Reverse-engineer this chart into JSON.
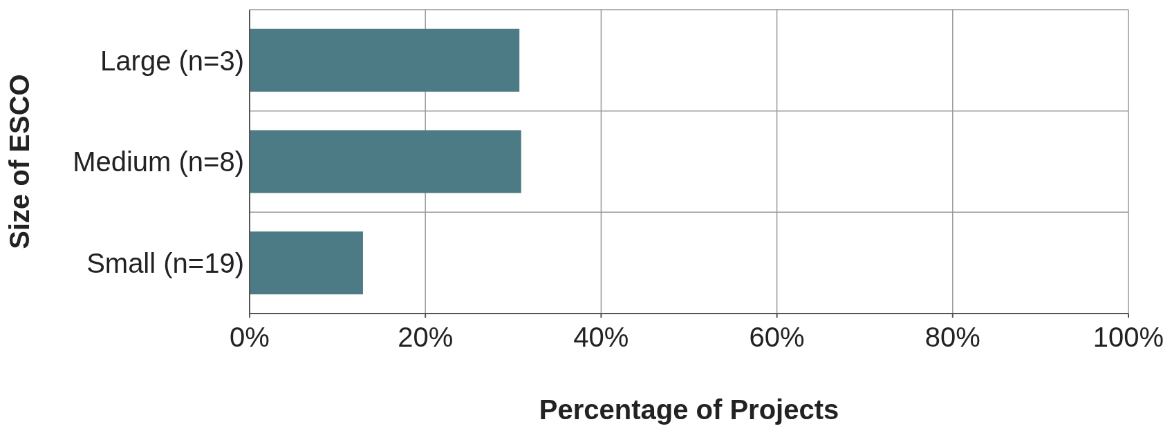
{
  "chart_data": {
    "type": "bar",
    "orientation": "horizontal",
    "categories": [
      "Large (n=3)",
      "Medium (n=8)",
      "Small (n=19)"
    ],
    "values": [
      30.7,
      30.9,
      12.9
    ],
    "color": "#4d7b85",
    "xlim": [
      0,
      100
    ],
    "xticks": [
      {
        "value": 0,
        "label": "0%"
      },
      {
        "value": 20,
        "label": "20%"
      },
      {
        "value": 40,
        "label": "40%"
      },
      {
        "value": 60,
        "label": "60%"
      },
      {
        "value": 80,
        "label": "80%"
      },
      {
        "value": 100,
        "label": "100%"
      }
    ],
    "xlabel": "Percentage of Projects",
    "ylabel": "Size of ESCO",
    "grid": true
  }
}
